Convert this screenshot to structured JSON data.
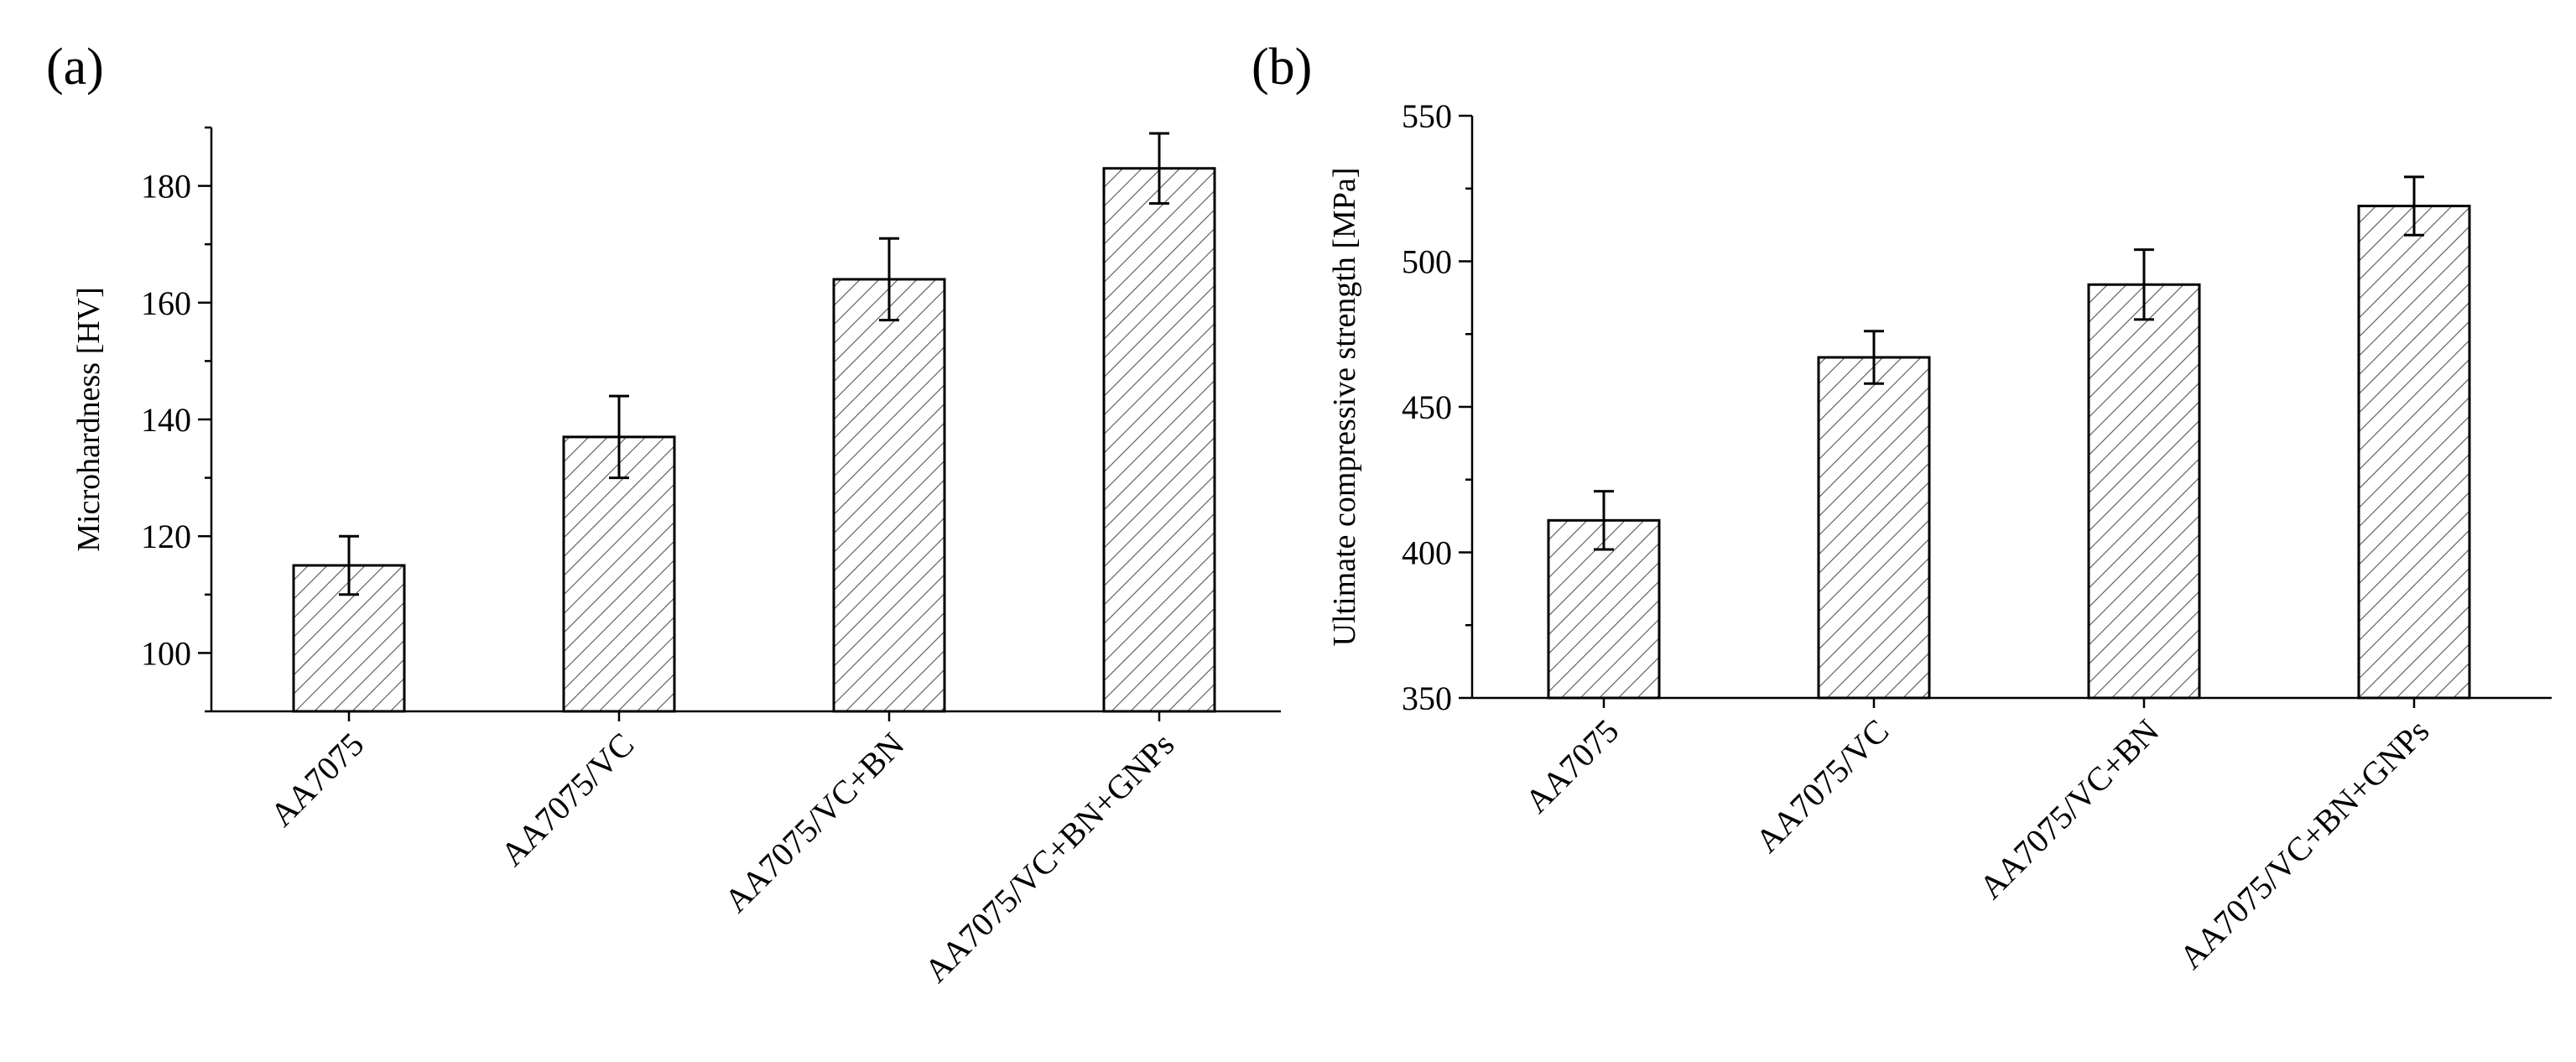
{
  "chart_data": [
    {
      "type": "bar",
      "panel_label": "(a)",
      "title": "",
      "xlabel": "",
      "ylabel": "Microhardness [HV]",
      "categories": [
        "AA7075",
        "AA7075/VC",
        "AA7075/VC+BN",
        "AA7075/VC+BN+GNPs"
      ],
      "values": [
        115,
        137,
        164,
        183
      ],
      "errors": [
        5,
        7,
        7,
        6
      ],
      "ylim": [
        90,
        190
      ],
      "yticks": [
        100,
        120,
        140,
        160,
        180
      ],
      "y_minor_step": 10,
      "bar_style": "hatched",
      "grid": false
    },
    {
      "type": "bar",
      "panel_label": "(b)",
      "title": "",
      "xlabel": "",
      "ylabel": "Ultimate compressive strength [MPa]",
      "categories": [
        "AA7075",
        "AA7075/VC",
        "AA7075/VC+BN",
        "AA7075/VC+BN+GNPs"
      ],
      "values": [
        411,
        467,
        492,
        519
      ],
      "errors": [
        10,
        9,
        12,
        10
      ],
      "ylim": [
        350,
        550
      ],
      "yticks": [
        350,
        400,
        450,
        500,
        550
      ],
      "y_minor_step": 25,
      "bar_style": "hatched",
      "grid": false
    }
  ]
}
